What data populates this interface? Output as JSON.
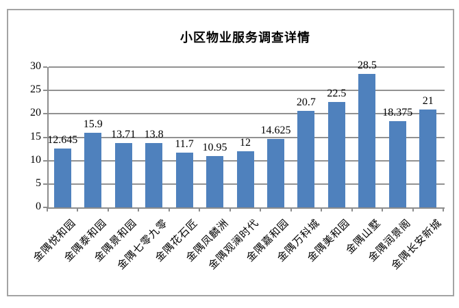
{
  "chart": {
    "colors": {
      "bar": "#4F81BD",
      "gridline": "#919191",
      "axis": "#8c8c8c",
      "frame_border": "#a3a3a3",
      "text": "#000000"
    }
  },
  "chart_data": {
    "type": "bar",
    "title": "小区物业服务调查详情",
    "categories": [
      "金隅悦和园",
      "金隅泰和园",
      "金隅景和园",
      "金隅七零九零",
      "金隅花石匠",
      "金隅凤麟洲",
      "金隅观澜时代",
      "金隅嘉和园",
      "金隅万科城",
      "金隅美和园",
      "金隅山墅",
      "金隅润景阁",
      "金隅长安新城"
    ],
    "values": [
      12.645,
      15.9,
      13.71,
      13.8,
      11.7,
      10.95,
      12,
      14.625,
      20.7,
      22.5,
      28.5,
      18.375,
      21
    ],
    "value_labels": [
      "12.645",
      "15.9",
      "13.71",
      "13.8",
      "11.7",
      "10.95",
      "12",
      "14.625",
      "20.7",
      "22.5",
      "28.5",
      "18.375",
      "21"
    ],
    "xlabel": "",
    "ylabel": "",
    "ylim": [
      0,
      30
    ],
    "yticks": [
      0,
      5,
      10,
      15,
      20,
      25,
      30
    ],
    "grid": true,
    "legend": false,
    "data_labels": true,
    "x_label_rotation_deg": 45
  }
}
